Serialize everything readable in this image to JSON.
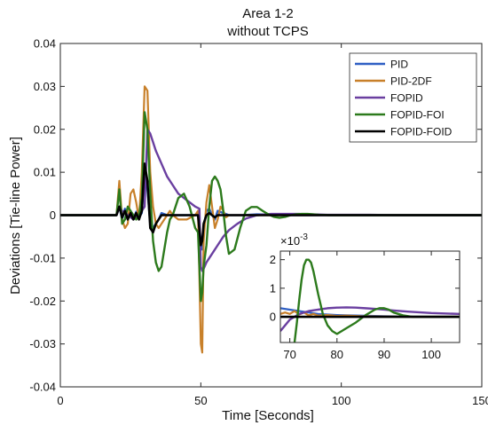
{
  "chart_data": [
    {
      "type": "line",
      "title": "Area 1-2",
      "subtitle": "without TCPS",
      "xlabel": "Time [Seconds]",
      "ylabel": "Deviations [Tie-line Power]",
      "xlim": [
        0,
        150
      ],
      "ylim": [
        -0.04,
        0.04
      ],
      "xticks": [
        "0",
        "50",
        "100",
        "150"
      ],
      "yticks": [
        "-0.04",
        "-0.03",
        "-0.02",
        "-0.01",
        "0",
        "0.01",
        "0.02",
        "0.03",
        "0.04"
      ],
      "legend_position": "top-right",
      "series": [
        {
          "name": "PID",
          "color": "#2f5fc4",
          "x": [
            0,
            20,
            21,
            22,
            23,
            24,
            25,
            26,
            27,
            28,
            29,
            30,
            31,
            32,
            33,
            34,
            35,
            36,
            38,
            40,
            45,
            49,
            50,
            50.5,
            51,
            52,
            53,
            54,
            55,
            56,
            58,
            60,
            65,
            70,
            80,
            100,
            150
          ],
          "y": [
            0,
            0,
            0.002,
            -0.001,
            0.0015,
            -0.0005,
            0.001,
            -0.001,
            0.0008,
            -0.0005,
            0.0005,
            0.01,
            0.006,
            -0.002,
            -0.003,
            -0.002,
            -0.001,
            0.0005,
            0,
            0,
            0,
            0,
            -0.006,
            -0.008,
            -0.003,
            0.001,
            0.0015,
            0,
            -0.001,
            0.001,
            0.0005,
            0,
            0,
            0.0002,
            0,
            0,
            0
          ]
        },
        {
          "name": "PID-2DF",
          "color": "#c8802a",
          "x": [
            0,
            20,
            21,
            22,
            23,
            24,
            25,
            26,
            27,
            28,
            29,
            30,
            31,
            32,
            33,
            34,
            35,
            36,
            37,
            38,
            39,
            40,
            42,
            45,
            48,
            49,
            50,
            50.5,
            51,
            52,
            53,
            54,
            55,
            56,
            57,
            58,
            59,
            60,
            62,
            65,
            70,
            80,
            100,
            150
          ],
          "y": [
            0,
            0,
            0.008,
            -0.001,
            -0.003,
            -0.002,
            0.005,
            0.006,
            0.003,
            -0.001,
            0.01,
            0.03,
            0.029,
            0.01,
            0.002,
            -0.002,
            -0.003,
            -0.002,
            -0.001,
            0,
            0.001,
            0,
            -0.001,
            -0.001,
            0,
            0.001,
            -0.03,
            -0.032,
            -0.006,
            0.003,
            0.007,
            0.002,
            -0.003,
            -0.001,
            0.002,
            0.001,
            -0.0005,
            0,
            0,
            0,
            0,
            0,
            0,
            0
          ]
        },
        {
          "name": "FOPID",
          "color": "#6a3fa0",
          "x": [
            0,
            20,
            21,
            22,
            24,
            26,
            28,
            30,
            31,
            32,
            33,
            34,
            36,
            38,
            40,
            42,
            44,
            46,
            48,
            49.5,
            50,
            50.5,
            51,
            52,
            54,
            56,
            58,
            60,
            63,
            66,
            70,
            75,
            80,
            85,
            90,
            95,
            100,
            110,
            120,
            150
          ],
          "y": [
            0,
            0,
            0.002,
            0.001,
            0,
            -0.001,
            0,
            0.002,
            0.02,
            0.019,
            0.017,
            0.015,
            0.012,
            0.009,
            0.007,
            0.005,
            0.004,
            0.003,
            0.002,
            0.0015,
            -0.012,
            -0.013,
            -0.0125,
            -0.011,
            -0.009,
            -0.007,
            -0.005,
            -0.0035,
            -0.002,
            -0.0008,
            0,
            0.0003,
            0.0003,
            0.0003,
            0.0002,
            0.0001,
            0.0001,
            0.0001,
            0,
            0
          ]
        },
        {
          "name": "FOPID-FOI",
          "color": "#2c7a1c",
          "x": [
            0,
            20,
            21,
            22,
            23,
            24,
            25,
            26,
            27,
            28,
            29,
            30,
            31,
            32,
            33,
            34,
            35,
            36,
            37,
            38,
            39,
            40,
            42,
            44,
            46,
            48,
            49,
            50,
            50.5,
            51,
            52,
            53,
            54,
            55,
            56,
            57,
            58,
            59,
            60,
            62,
            64,
            66,
            68,
            70,
            72,
            74,
            76,
            78,
            80,
            82,
            84,
            86,
            88,
            90,
            92,
            96,
            100,
            110,
            150
          ],
          "y": [
            0,
            0,
            0.006,
            -0.002,
            -0.001,
            0.002,
            0.001,
            0,
            -0.001,
            0,
            0.004,
            0.024,
            0.02,
            0.005,
            -0.006,
            -0.011,
            -0.013,
            -0.012,
            -0.008,
            -0.004,
            -0.001,
            0,
            0.004,
            0.005,
            0.002,
            -0.003,
            -0.004,
            -0.02,
            -0.018,
            -0.012,
            -0.007,
            0.002,
            0.008,
            0.009,
            0.008,
            0.006,
            0.001,
            -0.005,
            -0.009,
            -0.008,
            -0.003,
            0.001,
            0.0019,
            0.0019,
            0.001,
            0.0002,
            -0.0004,
            -0.0006,
            -0.0004,
            0,
            0.0002,
            0.0003,
            0.0003,
            0.0002,
            0.0001,
            0,
            0,
            0,
            0
          ]
        },
        {
          "name": "FOPID-FOID",
          "color": "#000000",
          "x": [
            0,
            20,
            21,
            22,
            23,
            24,
            25,
            26,
            27,
            28,
            29,
            30,
            31,
            32,
            33,
            34,
            35,
            36,
            38,
            40,
            45,
            49,
            50,
            50.5,
            51,
            52,
            53,
            54,
            55,
            56,
            58,
            60,
            65,
            70,
            80,
            100,
            150
          ],
          "y": [
            0,
            0,
            0.002,
            -0.0005,
            0.001,
            -0.001,
            0.0005,
            -0.001,
            0.0005,
            -0.001,
            0.001,
            0.012,
            0.008,
            -0.003,
            -0.004,
            -0.002,
            -0.001,
            0,
            0,
            0,
            0,
            0,
            -0.007,
            -0.006,
            -0.002,
            0,
            0.0005,
            0,
            -0.0005,
            0,
            0,
            0,
            0,
            0,
            0,
            0,
            0
          ]
        }
      ]
    },
    {
      "type": "line",
      "title": "",
      "xlim": [
        68,
        106
      ],
      "ylim": [
        -0.0009,
        0.0023
      ],
      "xticks": [
        "70",
        "80",
        "90",
        "100"
      ],
      "yticks": [
        "2",
        "1",
        "0"
      ],
      "y_multiplier": "×10",
      "y_multiplier_exp": "-3",
      "series": [
        {
          "name": "PID",
          "color": "#2f5fc4",
          "x": [
            68,
            70,
            72,
            74,
            76,
            78,
            80,
            85,
            90,
            95,
            100,
            106
          ],
          "y": [
            0.0003,
            0.00025,
            0.0002,
            0.00015,
            0.0001,
            8e-05,
            6e-05,
            4e-05,
            2e-05,
            1e-05,
            0,
            0
          ]
        },
        {
          "name": "PID-2DF",
          "color": "#c8802a",
          "x": [
            68,
            69,
            70,
            71,
            72,
            73,
            74,
            75,
            76,
            78,
            80,
            82,
            85,
            90,
            95,
            100,
            106
          ],
          "y": [
            0.0001,
            0.00015,
            0.0001,
            0.0002,
            8e-05,
            0.00015,
            5e-05,
            0.0001,
            4e-05,
            6e-05,
            3e-05,
            4e-05,
            2e-05,
            1e-05,
            0,
            0,
            0
          ]
        },
        {
          "name": "FOPID",
          "color": "#6a3fa0",
          "x": [
            68,
            69,
            70,
            72,
            74,
            76,
            78,
            80,
            82,
            84,
            86,
            88,
            90,
            92,
            95,
            100,
            106
          ],
          "y": [
            -0.0005,
            -0.0003,
            -0.0001,
            0.0001,
            0.0002,
            0.00025,
            0.0003,
            0.00032,
            0.00033,
            0.00032,
            0.0003,
            0.00028,
            0.00025,
            0.00022,
            0.00018,
            0.00013,
            0.0001
          ]
        },
        {
          "name": "FOPID-FOI",
          "color": "#2c7a1c",
          "x": [
            71,
            71.5,
            72,
            72.5,
            73,
            73.5,
            74,
            74.5,
            75,
            76,
            77,
            78,
            79,
            80,
            81,
            82,
            84,
            86,
            88,
            89,
            90,
            91,
            92,
            94,
            96,
            100,
            106
          ],
          "y": [
            -0.0009,
            -0.0002,
            0.0006,
            0.0013,
            0.0018,
            0.002,
            0.002,
            0.0019,
            0.0016,
            0.0008,
            0.0001,
            -0.0003,
            -0.0005,
            -0.0006,
            -0.0005,
            -0.0004,
            -0.0002,
            5e-05,
            0.00025,
            0.0003,
            0.0003,
            0.00025,
            0.00015,
            5e-05,
            0,
            0,
            0
          ]
        },
        {
          "name": "FOPID-FOID",
          "color": "#000000",
          "x": [
            68,
            106
          ],
          "y": [
            0,
            0
          ]
        }
      ]
    }
  ]
}
